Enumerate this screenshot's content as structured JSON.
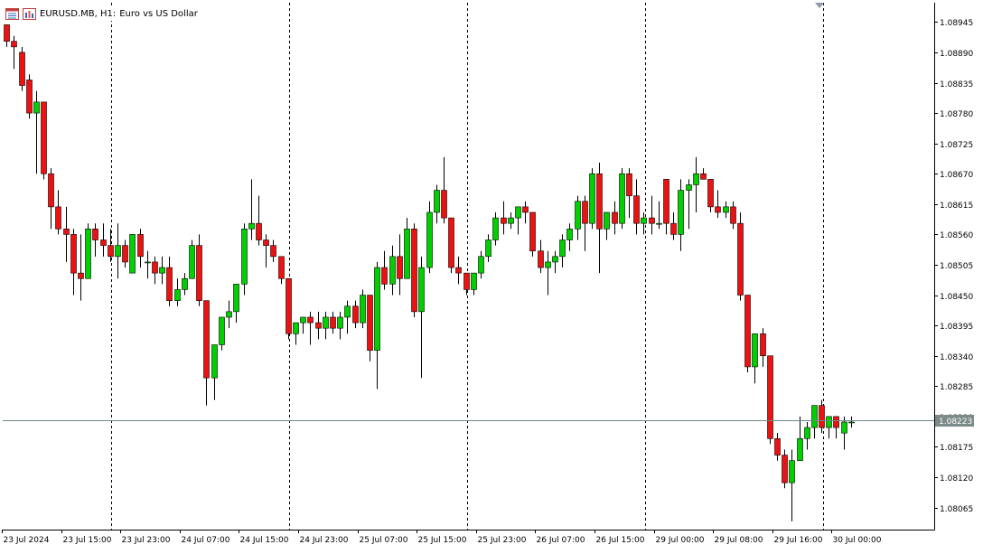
{
  "header": {
    "symbol": "EURUSD.MB, H1:",
    "description": "Euro vs US Dollar",
    "icons": [
      "window-list-icon",
      "chart-properties-icon"
    ]
  },
  "colors": {
    "bull": "#00d000",
    "bear": "#ee1111",
    "wick": "#000000",
    "price_line": "#6c8a8a",
    "price_label_bg": "#7d8a8a",
    "price_label_text": "#ffffff",
    "grid": "#000000",
    "axis": "#000000"
  },
  "chart_data": {
    "type": "candlestick",
    "title": "EURUSD.MB, H1: Euro vs US Dollar",
    "timeframe": "H1",
    "symbol": "EURUSD.MB",
    "ylim": [
      1.08025,
      1.0898
    ],
    "y_ticks": [
      "1.08945",
      "1.08890",
      "1.08835",
      "1.08780",
      "1.08725",
      "1.08670",
      "1.08615",
      "1.08560",
      "1.08505",
      "1.08450",
      "1.08395",
      "1.08340",
      "1.08285",
      "1.08230",
      "1.08175",
      "1.08120",
      "1.08065"
    ],
    "x_ticks": [
      "23 Jul 2024",
      "23 Jul 15:00",
      "23 Jul 23:00",
      "24 Jul 07:00",
      "24 Jul 15:00",
      "24 Jul 23:00",
      "25 Jul 07:00",
      "25 Jul 15:00",
      "25 Jul 23:00",
      "26 Jul 07:00",
      "26 Jul 15:00",
      "29 Jul 00:00",
      "29 Jul 08:00",
      "29 Jul 16:00",
      "30 Jul 00:00"
    ],
    "session_separators_after_tick": [
      "23 Jul 15:00",
      "24 Jul 15:00",
      "25 Jul 15:00",
      "26 Jul 15:00",
      "29 Jul 16:00"
    ],
    "current_price": "1.08223",
    "grid": false,
    "candles": [
      [
        1.0894,
        1.0894,
        1.089,
        1.0891
      ],
      [
        1.0891,
        1.0892,
        1.0886,
        1.089
      ],
      [
        1.0889,
        1.089,
        1.0882,
        1.0883
      ],
      [
        1.0884,
        1.0885,
        1.0877,
        1.0878
      ],
      [
        1.0878,
        1.0882,
        1.0867,
        1.088
      ],
      [
        1.088,
        1.088,
        1.0866,
        1.0867
      ],
      [
        1.0867,
        1.0868,
        1.0857,
        1.0861
      ],
      [
        1.0861,
        1.0864,
        1.0856,
        1.0857
      ],
      [
        1.0857,
        1.0861,
        1.0851,
        1.0856
      ],
      [
        1.0856,
        1.0857,
        1.0845,
        1.0849
      ],
      [
        1.0849,
        1.0856,
        1.0844,
        1.0848
      ],
      [
        1.0848,
        1.0858,
        1.0848,
        1.0857
      ],
      [
        1.0857,
        1.0858,
        1.0852,
        1.0855
      ],
      [
        1.0855,
        1.0858,
        1.0852,
        1.0854
      ],
      [
        1.0854,
        1.0857,
        1.0851,
        1.0852
      ],
      [
        1.0852,
        1.0858,
        1.0848,
        1.0854
      ],
      [
        1.0854,
        1.0855,
        1.085,
        1.0851
      ],
      [
        1.0849,
        1.0856,
        1.0849,
        1.0856
      ],
      [
        1.0856,
        1.0857,
        1.085,
        1.0852
      ],
      [
        1.0851,
        1.0853,
        1.0848,
        1.0851
      ],
      [
        1.0851,
        1.0852,
        1.0847,
        1.0849
      ],
      [
        1.0849,
        1.0852,
        1.0847,
        1.085
      ],
      [
        1.085,
        1.0852,
        1.0843,
        1.0844
      ],
      [
        1.0844,
        1.0848,
        1.0843,
        1.0846
      ],
      [
        1.0846,
        1.0849,
        1.0845,
        1.0848
      ],
      [
        1.0848,
        1.0855,
        1.0848,
        1.0854
      ],
      [
        1.0854,
        1.0856,
        1.0843,
        1.0844
      ],
      [
        1.0844,
        1.0844,
        1.0825,
        1.083
      ],
      [
        1.083,
        1.0836,
        1.0826,
        1.0836
      ],
      [
        1.0836,
        1.0841,
        1.0835,
        1.0841
      ],
      [
        1.0841,
        1.0844,
        1.0839,
        1.0842
      ],
      [
        1.0842,
        1.0847,
        1.084,
        1.0847
      ],
      [
        1.0847,
        1.0858,
        1.0845,
        1.0857
      ],
      [
        1.0857,
        1.0866,
        1.0855,
        1.0858
      ],
      [
        1.0858,
        1.0863,
        1.0854,
        1.0855
      ],
      [
        1.0855,
        1.0856,
        1.085,
        1.0854
      ],
      [
        1.0854,
        1.0855,
        1.0851,
        1.0852
      ],
      [
        1.0852,
        1.0852,
        1.0847,
        1.0848
      ],
      [
        1.0848,
        1.0848,
        1.0837,
        1.0838
      ],
      [
        1.0838,
        1.084,
        1.0836,
        1.084
      ],
      [
        1.084,
        1.0841,
        1.0838,
        1.0841
      ],
      [
        1.0841,
        1.0842,
        1.0836,
        1.084
      ],
      [
        1.084,
        1.0842,
        1.0837,
        1.0839
      ],
      [
        1.0839,
        1.0842,
        1.0837,
        1.0841
      ],
      [
        1.0841,
        1.0842,
        1.0838,
        1.0839
      ],
      [
        1.0839,
        1.0842,
        1.0837,
        1.0841
      ],
      [
        1.0841,
        1.0844,
        1.0838,
        1.0843
      ],
      [
        1.0843,
        1.0844,
        1.0839,
        1.084
      ],
      [
        1.084,
        1.0846,
        1.0839,
        1.0845
      ],
      [
        1.0845,
        1.0845,
        1.0833,
        1.0835
      ],
      [
        1.0835,
        1.0851,
        1.0828,
        1.085
      ],
      [
        1.085,
        1.0853,
        1.0846,
        1.0847
      ],
      [
        1.0847,
        1.0854,
        1.0845,
        1.0852
      ],
      [
        1.0852,
        1.0856,
        1.0845,
        1.0848
      ],
      [
        1.0848,
        1.0859,
        1.0848,
        1.0857
      ],
      [
        1.0857,
        1.0858,
        1.0841,
        1.0842
      ],
      [
        1.0842,
        1.0852,
        1.083,
        1.085
      ],
      [
        1.085,
        1.0862,
        1.0849,
        1.086
      ],
      [
        1.086,
        1.0865,
        1.0858,
        1.0864
      ],
      [
        1.0864,
        1.087,
        1.0858,
        1.0859
      ],
      [
        1.0859,
        1.0859,
        1.0849,
        1.085
      ],
      [
        1.085,
        1.0852,
        1.0847,
        1.0849
      ],
      [
        1.0849,
        1.0849,
        1.0845,
        1.0846
      ],
      [
        1.0846,
        1.0849,
        1.0845,
        1.0849
      ],
      [
        1.0849,
        1.0853,
        1.0848,
        1.0852
      ],
      [
        1.0852,
        1.0856,
        1.0851,
        1.0855
      ],
      [
        1.0855,
        1.086,
        1.0854,
        1.0859
      ],
      [
        1.0859,
        1.0862,
        1.0856,
        1.0858
      ],
      [
        1.0858,
        1.086,
        1.0857,
        1.0859
      ],
      [
        1.0859,
        1.0861,
        1.0856,
        1.0861
      ],
      [
        1.0861,
        1.0862,
        1.0858,
        1.086
      ],
      [
        1.086,
        1.086,
        1.0852,
        1.0853
      ],
      [
        1.0853,
        1.0855,
        1.0849,
        1.085
      ],
      [
        1.085,
        1.0853,
        1.0845,
        1.0851
      ],
      [
        1.0851,
        1.0853,
        1.0849,
        1.0852
      ],
      [
        1.0852,
        1.0856,
        1.085,
        1.0855
      ],
      [
        1.0855,
        1.0858,
        1.0853,
        1.0857
      ],
      [
        1.0857,
        1.0863,
        1.0855,
        1.0862
      ],
      [
        1.0862,
        1.0863,
        1.0853,
        1.0858
      ],
      [
        1.0858,
        1.0868,
        1.0857,
        1.0867
      ],
      [
        1.0867,
        1.0869,
        1.0849,
        1.0857
      ],
      [
        1.0857,
        1.086,
        1.0855,
        1.086
      ],
      [
        1.086,
        1.0862,
        1.0856,
        1.0858
      ],
      [
        1.0858,
        1.0868,
        1.0857,
        1.0867
      ],
      [
        1.0867,
        1.0868,
        1.0859,
        1.0863
      ],
      [
        1.0863,
        1.0866,
        1.0856,
        1.0858
      ],
      [
        1.0858,
        1.086,
        1.0856,
        1.0859
      ],
      [
        1.0859,
        1.0863,
        1.0856,
        1.0858
      ],
      [
        1.0858,
        1.0862,
        1.0857,
        1.0858
      ],
      [
        1.0866,
        1.0866,
        1.0856,
        1.0858
      ],
      [
        1.0858,
        1.086,
        1.0855,
        1.0856
      ],
      [
        1.0856,
        1.0866,
        1.0853,
        1.0864
      ],
      [
        1.0864,
        1.0866,
        1.0857,
        1.0865
      ],
      [
        1.0865,
        1.087,
        1.086,
        1.0867
      ],
      [
        1.0867,
        1.0868,
        1.0866,
        1.0866
      ],
      [
        1.0866,
        1.0866,
        1.086,
        1.0861
      ],
      [
        1.0861,
        1.0864,
        1.0859,
        1.086
      ],
      [
        1.086,
        1.0862,
        1.0859,
        1.0861
      ],
      [
        1.0861,
        1.0862,
        1.0857,
        1.0858
      ],
      [
        1.0858,
        1.086,
        1.0844,
        1.0845
      ],
      [
        1.0845,
        1.0845,
        1.0831,
        1.0832
      ],
      [
        1.0832,
        1.0838,
        1.0829,
        1.0838
      ],
      [
        1.0838,
        1.0839,
        1.0832,
        1.0834
      ],
      [
        1.0834,
        1.0834,
        1.0818,
        1.0819
      ],
      [
        1.0819,
        1.082,
        1.0815,
        1.0816
      ],
      [
        1.0816,
        1.0817,
        1.081,
        1.0811
      ],
      [
        1.0811,
        1.0817,
        1.0804,
        1.0815
      ],
      [
        1.0815,
        1.0823,
        1.0815,
        1.0819
      ],
      [
        1.0819,
        1.0822,
        1.0817,
        1.0821
      ],
      [
        1.0821,
        1.0825,
        1.0819,
        1.0825
      ],
      [
        1.0825,
        1.0826,
        1.082,
        1.0821
      ],
      [
        1.0821,
        1.0823,
        1.0819,
        1.0823
      ],
      [
        1.0823,
        1.0823,
        1.0819,
        1.0821
      ],
      [
        1.082,
        1.0823,
        1.0817,
        1.0822
      ],
      [
        1.0822,
        1.0823,
        1.0821,
        1.0822
      ]
    ]
  }
}
